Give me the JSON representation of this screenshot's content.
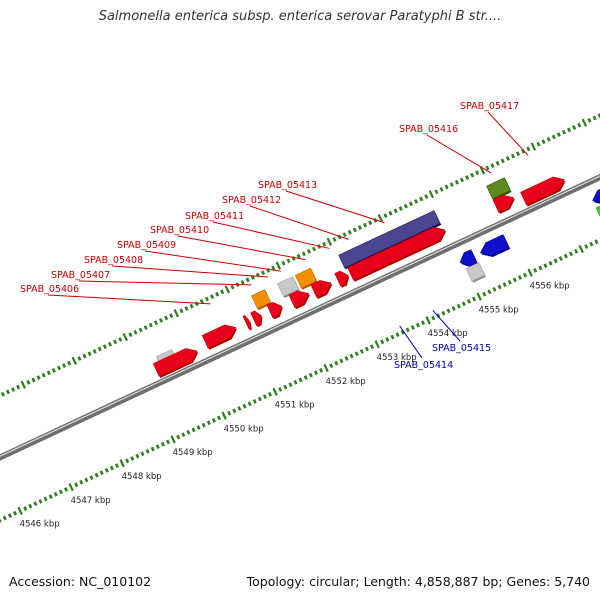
{
  "title": "Salmonella enterica subsp. enterica serovar Paratyphi B str....",
  "footer": {
    "accession": "Accession: NC_010102",
    "summary": "Topology: circular; Length: 4,858,887 bp; Genes: 5,740"
  },
  "colors": {
    "forward_label": "#cc0000",
    "reverse_label": "#0000bb",
    "ticks": "#2e7d1e",
    "backbone": "#8a8a8a",
    "cds": "#e8001a",
    "gray_feature": "#c8c8c8",
    "orange_feature": "#f09000",
    "purple_feature": "#4a4690",
    "olive_feature": "#5f8a22",
    "blue_feature": "#1010cc",
    "green_feature": "#33cc33"
  },
  "kbp_labels": [
    {
      "label": "4546 kbp",
      "pos": 4546
    },
    {
      "label": "4547 kbp",
      "pos": 4547
    },
    {
      "label": "4548 kbp",
      "pos": 4548
    },
    {
      "label": "4549 kbp",
      "pos": 4549
    },
    {
      "label": "4550 kbp",
      "pos": 4550
    },
    {
      "label": "4551 kbp",
      "pos": 4551
    },
    {
      "label": "4552 kbp",
      "pos": 4552
    },
    {
      "label": "4553 kbp",
      "pos": 4553
    },
    {
      "label": "4554 kbp",
      "pos": 4554
    },
    {
      "label": "4555 kbp",
      "pos": 4555
    },
    {
      "label": "4556 kbp",
      "pos": 4556
    }
  ],
  "features": [
    {
      "lane": "f2",
      "start": 4549.35,
      "end": 4549.65,
      "color": "gray_feature",
      "strand": 0
    },
    {
      "lane": "f1",
      "start": 4549.25,
      "end": 4550.05,
      "color": "cds",
      "strand": 1
    },
    {
      "lane": "f2",
      "start": 4550.25,
      "end": 4550.85,
      "color": "cds",
      "strand": 1
    },
    {
      "lane": "f2",
      "start": 4551.05,
      "end": 4551.12,
      "color": "cds",
      "strand": 1
    },
    {
      "lane": "f2",
      "start": 4551.2,
      "end": 4551.35,
      "color": "cds",
      "strand": 1
    },
    {
      "lane": "f3",
      "start": 4551.34,
      "end": 4551.6,
      "color": "orange_feature",
      "strand": 0
    },
    {
      "lane": "f2",
      "start": 4551.52,
      "end": 4551.75,
      "color": "cds",
      "strand": 1
    },
    {
      "lane": "f3",
      "start": 4551.85,
      "end": 4552.15,
      "color": "gray_feature",
      "strand": 0
    },
    {
      "lane": "f2",
      "start": 4551.95,
      "end": 4552.28,
      "color": "cds",
      "strand": 1
    },
    {
      "lane": "f3",
      "start": 4552.2,
      "end": 4552.5,
      "color": "orange_feature",
      "strand": 0
    },
    {
      "lane": "f2",
      "start": 4552.38,
      "end": 4552.72,
      "color": "cds",
      "strand": 1
    },
    {
      "lane": "f2",
      "start": 4552.85,
      "end": 4553.05,
      "color": "cds",
      "strand": 1
    },
    {
      "lane": "f3",
      "start": 4553.05,
      "end": 4554.92,
      "color": "purple_feature",
      "strand": 0
    },
    {
      "lane": "f2",
      "start": 4553.1,
      "end": 4554.95,
      "color": "cds",
      "strand": 1
    },
    {
      "lane": "r1",
      "start": 4554.95,
      "end": 4555.22,
      "color": "blue_feature",
      "strand": -1
    },
    {
      "lane": "r1",
      "start": 4555.35,
      "end": 4555.85,
      "color": "blue_feature",
      "strand": -1
    },
    {
      "lane": "r2",
      "start": 4555.0,
      "end": 4555.25,
      "color": "gray_feature",
      "strand": 0
    },
    {
      "lane": "f3",
      "start": 4555.95,
      "end": 4556.3,
      "color": "olive_feature",
      "strand": 0
    },
    {
      "lane": "f2",
      "start": 4555.95,
      "end": 4556.3,
      "color": "cds",
      "strand": 1
    },
    {
      "lane": "f1",
      "start": 4556.45,
      "end": 4557.25,
      "color": "cds",
      "strand": 1
    },
    {
      "lane": "r1",
      "start": 4557.55,
      "end": 4557.85,
      "color": "blue_feature",
      "strand": -1
    },
    {
      "lane": "r2",
      "start": 4557.55,
      "end": 4557.9,
      "color": "green_feature",
      "strand": 0
    }
  ],
  "gene_labels": [
    {
      "text": "SPAB_05406",
      "strand": "forward",
      "target": 4550.62
    },
    {
      "text": "SPAB_05407",
      "strand": "forward",
      "target": 4551.42
    },
    {
      "text": "SPAB_05408",
      "strand": "forward",
      "target": 4551.75
    },
    {
      "text": "SPAB_05409",
      "strand": "forward",
      "target": 4552.0
    },
    {
      "text": "SPAB_05410",
      "strand": "forward",
      "target": 4552.48
    },
    {
      "text": "SPAB_05411",
      "strand": "forward",
      "target": 4552.95
    },
    {
      "text": "SPAB_05412",
      "strand": "forward",
      "target": 4553.33
    },
    {
      "text": "SPAB_05413",
      "strand": "forward",
      "target": 4554.03
    },
    {
      "text": "SPAB_05416",
      "strand": "forward",
      "target": 4556.12
    },
    {
      "text": "SPAB_05417",
      "strand": "forward",
      "target": 4556.85
    },
    {
      "text": "SPAB_05414",
      "strand": "reverse",
      "target": 4553.5
    },
    {
      "text": "SPAB_05415",
      "strand": "reverse",
      "target": 4554.15
    }
  ]
}
